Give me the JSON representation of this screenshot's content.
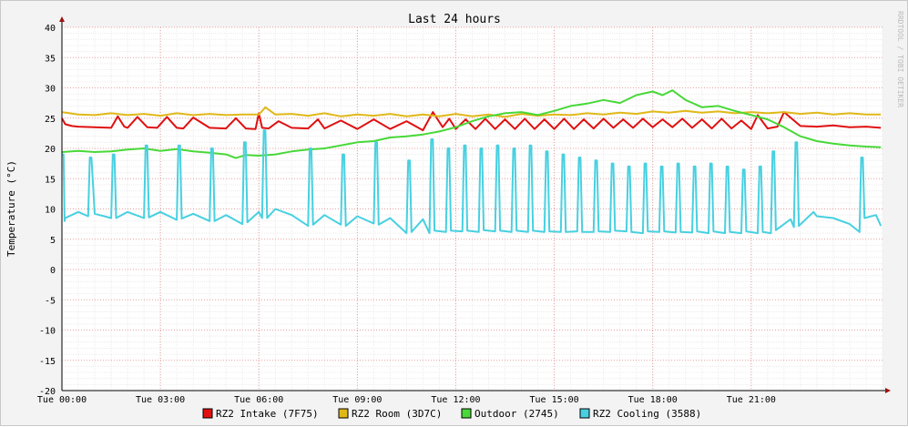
{
  "chart_data": {
    "type": "line",
    "title": "Last 24 hours",
    "ylabel": "Temperature (°C)",
    "watermark": "RRDTOOL / TOBI OETIKER",
    "xlim": [
      0,
      25
    ],
    "ylim": [
      -20,
      40
    ],
    "yticks": [
      "40",
      "35",
      "30",
      "25",
      "20",
      "15",
      "10",
      "5",
      "0",
      "-5",
      "-10",
      "-15",
      "-20"
    ],
    "xticks": [
      "Tue 00:00",
      "Tue 03:00",
      "Tue 06:00",
      "Tue 09:00",
      "Tue 12:00",
      "Tue 15:00",
      "Tue 18:00",
      "Tue 21:00"
    ],
    "grid": true,
    "legend_position": "bottom",
    "series": [
      {
        "name": "RZ2 Intake (7F75)",
        "color": "#e01010",
        "x": [
          0,
          0.1,
          0.3,
          0.5,
          1.0,
          1.5,
          1.7,
          1.9,
          2.0,
          2.3,
          2.6,
          2.9,
          3.2,
          3.5,
          3.7,
          4.0,
          4.5,
          5.0,
          5.3,
          5.6,
          5.9,
          6.0,
          6.1,
          6.3,
          6.6,
          7.0,
          7.5,
          7.8,
          8.0,
          8.5,
          9.0,
          9.5,
          10.0,
          10.5,
          11.0,
          11.3,
          11.6,
          11.8,
          12.0,
          12.3,
          12.6,
          12.9,
          13.2,
          13.5,
          13.8,
          14.1,
          14.4,
          14.7,
          15.0,
          15.3,
          15.6,
          15.9,
          16.2,
          16.5,
          16.8,
          17.1,
          17.4,
          17.7,
          18.0,
          18.3,
          18.6,
          18.9,
          19.2,
          19.5,
          19.8,
          20.1,
          20.4,
          20.7,
          21.0,
          21.2,
          21.5,
          21.8,
          22.0,
          22.5,
          23.0,
          23.5,
          24.0,
          24.5,
          24.95
        ],
        "values": [
          25,
          24,
          23.7,
          23.6,
          23.5,
          23.4,
          25.3,
          23.6,
          23.4,
          25.2,
          23.5,
          23.4,
          25.2,
          23.4,
          23.3,
          25.1,
          23.4,
          23.3,
          25.0,
          23.3,
          23.2,
          25.8,
          23.4,
          23.3,
          24.5,
          23.4,
          23.3,
          24.8,
          23.3,
          24.6,
          23.2,
          24.8,
          23.2,
          24.5,
          23.0,
          26.0,
          23.5,
          24.9,
          23.2,
          24.8,
          23.2,
          24.9,
          23.2,
          24.8,
          23.2,
          24.9,
          23.2,
          24.8,
          23.2,
          24.9,
          23.2,
          24.8,
          23.3,
          24.9,
          23.4,
          24.8,
          23.4,
          24.9,
          23.5,
          24.8,
          23.5,
          24.9,
          23.4,
          24.8,
          23.3,
          24.9,
          23.3,
          24.6,
          23.2,
          25.5,
          23.3,
          23.6,
          26.0,
          23.7,
          23.6,
          23.8,
          23.5,
          23.6,
          23.4
        ]
      },
      {
        "name": "RZ2 Room (3D7C)",
        "color": "#e0b818",
        "x": [
          0,
          0.5,
          1.0,
          1.5,
          2.0,
          2.5,
          3.0,
          3.5,
          4.0,
          4.5,
          5.0,
          5.5,
          6.0,
          6.2,
          6.5,
          7.0,
          7.5,
          8.0,
          8.5,
          9.0,
          9.5,
          10.0,
          10.5,
          11.0,
          11.5,
          12.0,
          12.5,
          13.0,
          13.5,
          14.0,
          14.5,
          15.0,
          15.5,
          16.0,
          16.5,
          17.0,
          17.5,
          18.0,
          18.5,
          19.0,
          19.5,
          20.0,
          20.5,
          21.0,
          21.5,
          22.0,
          22.5,
          23.0,
          23.5,
          24.0,
          24.5,
          24.95
        ],
        "values": [
          26,
          25.6,
          25.5,
          25.8,
          25.5,
          25.7,
          25.4,
          25.8,
          25.5,
          25.7,
          25.5,
          25.6,
          25.6,
          26.8,
          25.6,
          25.7,
          25.4,
          25.8,
          25.3,
          25.6,
          25.4,
          25.7,
          25.3,
          25.6,
          25.3,
          25.7,
          25.3,
          25.6,
          25.2,
          25.7,
          25.4,
          25.6,
          25.5,
          25.8,
          25.6,
          25.9,
          25.7,
          26.1,
          25.9,
          26.2,
          25.9,
          26.1,
          25.8,
          26.0,
          25.8,
          26.0,
          25.7,
          25.9,
          25.6,
          25.8,
          25.6,
          25.6
        ]
      },
      {
        "name": "Outdoor (2745)",
        "color": "#48d838",
        "x": [
          0,
          0.5,
          1.0,
          1.5,
          2.0,
          2.5,
          3.0,
          3.5,
          4.0,
          4.5,
          5.0,
          5.3,
          5.6,
          6.0,
          6.5,
          7.0,
          7.5,
          8.0,
          8.5,
          9.0,
          9.5,
          10.0,
          10.5,
          11.0,
          11.5,
          12.0,
          12.5,
          13.0,
          13.5,
          14.0,
          14.5,
          15.0,
          15.5,
          16.0,
          16.5,
          17.0,
          17.5,
          18.0,
          18.3,
          18.6,
          19.0,
          19.5,
          20.0,
          20.5,
          21.0,
          21.5,
          22.0,
          22.5,
          23.0,
          23.5,
          24.0,
          24.5,
          24.95
        ],
        "values": [
          19.4,
          19.6,
          19.4,
          19.5,
          19.8,
          20.0,
          19.6,
          19.9,
          19.5,
          19.3,
          19.0,
          18.4,
          18.9,
          18.8,
          19.0,
          19.5,
          19.8,
          20.0,
          20.5,
          21.0,
          21.2,
          21.8,
          22.0,
          22.3,
          22.8,
          23.5,
          24.5,
          25.3,
          25.8,
          26.0,
          25.5,
          26.2,
          27.0,
          27.4,
          28.0,
          27.5,
          28.8,
          29.4,
          28.8,
          29.6,
          28.0,
          26.8,
          27.0,
          26.2,
          25.5,
          24.8,
          23.5,
          22.0,
          21.2,
          20.8,
          20.5,
          20.3,
          20.2
        ]
      },
      {
        "name": "RZ2 Cooling (3588)",
        "color": "#48d0e0",
        "x": [
          0,
          0.05,
          0.08,
          0.1,
          0.5,
          0.8,
          0.85,
          0.9,
          1.0,
          1.5,
          1.55,
          1.6,
          1.65,
          2.0,
          2.5,
          2.55,
          2.6,
          2.65,
          3.0,
          3.5,
          3.55,
          3.6,
          3.65,
          4.0,
          4.5,
          4.55,
          4.6,
          4.65,
          5.0,
          5.5,
          5.55,
          5.6,
          5.65,
          6.0,
          6.1,
          6.15,
          6.2,
          6.25,
          6.5,
          7.0,
          7.5,
          7.55,
          7.6,
          7.65,
          8.0,
          8.5,
          8.55,
          8.6,
          8.65,
          9.0,
          9.5,
          9.55,
          9.6,
          9.65,
          10.0,
          10.5,
          10.55,
          10.6,
          10.65,
          11.0,
          11.2,
          11.25,
          11.3,
          11.35,
          11.7,
          11.75,
          11.8,
          11.85,
          12.2,
          12.25,
          12.3,
          12.35,
          12.7,
          12.75,
          12.8,
          12.85,
          13.2,
          13.25,
          13.3,
          13.35,
          13.7,
          13.75,
          13.8,
          13.85,
          14.2,
          14.25,
          14.3,
          14.35,
          14.7,
          14.75,
          14.8,
          14.85,
          15.2,
          15.25,
          15.3,
          15.35,
          15.7,
          15.75,
          15.8,
          15.85,
          16.2,
          16.25,
          16.3,
          16.35,
          16.7,
          16.75,
          16.8,
          16.85,
          17.2,
          17.25,
          17.3,
          17.35,
          17.7,
          17.75,
          17.8,
          17.85,
          18.2,
          18.25,
          18.3,
          18.35,
          18.7,
          18.75,
          18.8,
          18.85,
          19.2,
          19.25,
          19.3,
          19.35,
          19.7,
          19.75,
          19.8,
          19.85,
          20.2,
          20.25,
          20.3,
          20.35,
          20.7,
          20.75,
          20.8,
          20.85,
          21.2,
          21.25,
          21.3,
          21.35,
          21.6,
          21.65,
          21.7,
          21.75,
          22.2,
          22.3,
          22.35,
          22.4,
          22.45,
          22.9,
          23.0,
          23.5,
          24.0,
          24.3,
          24.35,
          24.4,
          24.45,
          24.8,
          24.95
        ],
        "values": [
          19,
          19,
          8,
          8.5,
          9.5,
          8.8,
          18.5,
          18.5,
          9.2,
          8.5,
          19,
          19,
          8.5,
          9.5,
          8.5,
          20.5,
          20.5,
          8.6,
          9.5,
          8.2,
          20.5,
          20.5,
          8.4,
          9.2,
          8.0,
          20,
          20,
          8.0,
          9.0,
          7.5,
          21,
          21,
          7.8,
          9.5,
          8.5,
          23,
          23,
          8.5,
          10.0,
          9.0,
          7.2,
          20,
          20,
          7.4,
          9.0,
          7.4,
          19,
          19,
          7.2,
          8.8,
          7.6,
          21,
          21,
          7.4,
          8.5,
          6.0,
          18,
          18,
          6.2,
          8.3,
          6.0,
          21.5,
          21.5,
          6.4,
          6.2,
          20,
          20,
          6.4,
          6.3,
          20.5,
          20.5,
          6.4,
          6.2,
          20,
          20,
          6.5,
          6.3,
          20.5,
          20.5,
          6.4,
          6.2,
          20,
          20,
          6.4,
          6.2,
          20.5,
          20.5,
          6.4,
          6.2,
          19.5,
          19.5,
          6.3,
          6.2,
          19,
          19,
          6.2,
          6.3,
          18.5,
          18.5,
          6.2,
          6.2,
          18,
          18,
          6.3,
          6.2,
          17.5,
          17.5,
          6.4,
          6.3,
          17,
          17,
          6.2,
          6.0,
          17.5,
          17.5,
          6.3,
          6.2,
          17,
          17,
          6.3,
          6.1,
          17.5,
          17.5,
          6.2,
          6.1,
          17,
          17,
          6.3,
          6.0,
          17.5,
          17.5,
          6.3,
          6.0,
          17,
          17,
          6.2,
          6.0,
          16.5,
          16.5,
          6.3,
          6.0,
          17,
          17,
          6.2,
          6.0,
          19.5,
          19.5,
          6.5,
          8.3,
          7.0,
          21,
          21,
          7.2,
          9.5,
          8.8,
          8.5,
          7.5,
          6.2,
          18.5,
          18.5,
          8.5,
          9.0,
          7.2
        ]
      }
    ]
  }
}
